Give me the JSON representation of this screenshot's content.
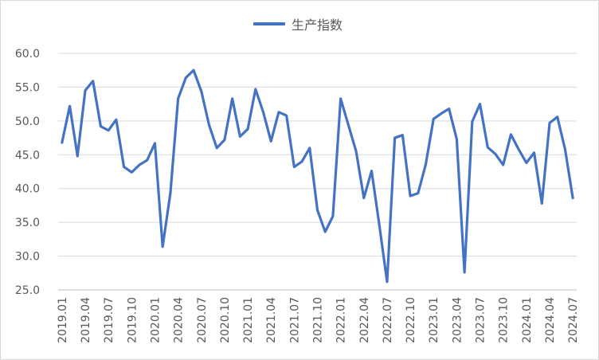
{
  "chart_data": {
    "type": "line",
    "series": [
      {
        "name": "生产指数",
        "color": "#4472c4",
        "values": [
          46.8,
          52.2,
          44.8,
          54.5,
          55.9,
          49.2,
          48.6,
          50.2,
          43.2,
          42.4,
          43.5,
          44.2,
          46.7,
          31.4,
          39.3,
          53.3,
          56.4,
          57.5,
          54.4,
          49.4,
          46.0,
          47.2,
          53.3,
          47.7,
          48.8,
          54.7,
          51.3,
          47.0,
          51.3,
          50.8,
          43.2,
          44.0,
          46.0,
          36.8,
          33.6,
          35.9,
          53.3,
          49.4,
          45.5,
          38.6,
          42.6,
          34.6,
          26.2,
          47.5,
          47.9,
          38.9,
          39.3,
          43.6,
          50.3,
          51.1,
          51.8,
          47.3,
          27.6,
          49.9,
          52.5,
          46.1,
          45.1,
          43.5,
          48.0,
          45.8,
          43.8,
          45.3,
          37.8,
          49.7,
          50.6,
          45.8,
          38.6
        ]
      }
    ],
    "x_tick_labels": [
      "2019.01",
      "2019.04",
      "2019.07",
      "2019.10",
      "2020.01",
      "2020.04",
      "2020.07",
      "2020.10",
      "2021.01",
      "2021.04",
      "2021.07",
      "2021.10",
      "2022.01",
      "2022.04",
      "2022.07",
      "2022.10",
      "2023.01",
      "2023.04",
      "2023.07",
      "2023.10",
      "2024.01",
      "2024.04",
      "2024.07"
    ],
    "y_tick_labels": [
      "25.0",
      "30.0",
      "35.0",
      "40.0",
      "45.0",
      "50.0",
      "55.0",
      "60.0"
    ],
    "ylim": [
      25,
      60
    ],
    "grid": "horizontal",
    "legend_position": "top"
  }
}
